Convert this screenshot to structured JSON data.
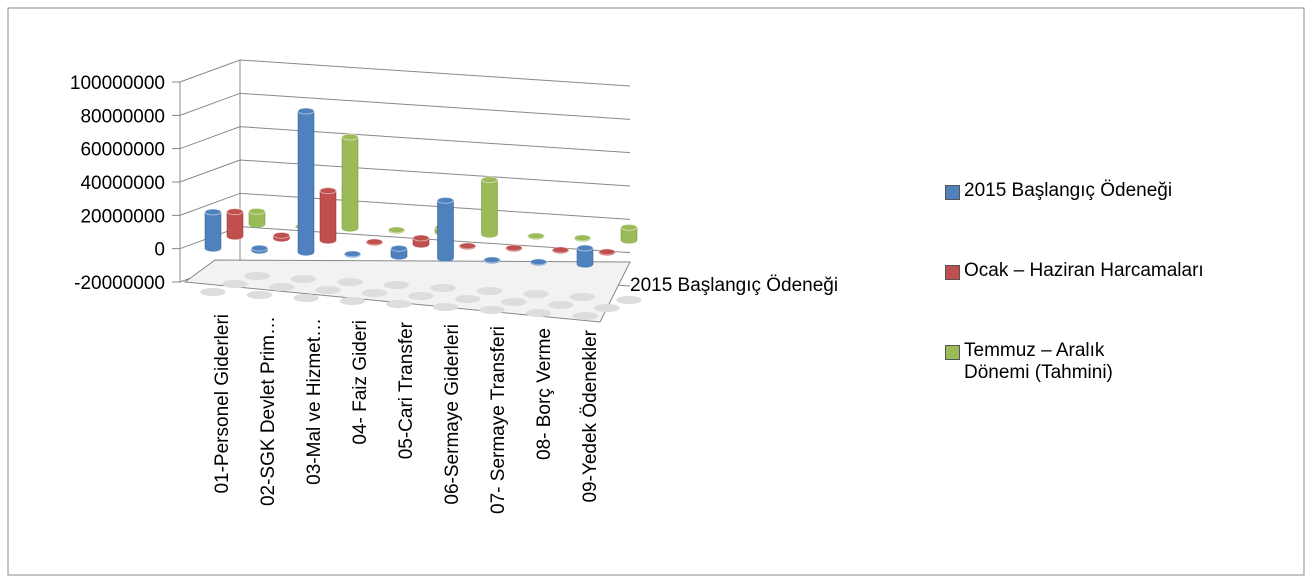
{
  "chart_data": {
    "type": "bar3d",
    "categories": [
      "01-Personel Giderleri",
      "02-SGK Devlet Prim…",
      "03-Mal ve Hizmet…",
      "04- Faiz Gideri",
      "05-Cari Transfer",
      "06-Sermaye Giderleri",
      "07- Sermaye Transferi",
      "08- Borç Verme",
      "09-Yedek Ödenekler"
    ],
    "series": [
      {
        "name": "2015 Başlangıç Ödeneği",
        "color": "#4f81bd",
        "values": [
          22000000,
          1500000,
          85000000,
          500000,
          5000000,
          35000000,
          500000,
          500000,
          10000000
        ]
      },
      {
        "name": "Ocak – Haziran  Harcamaları",
        "color": "#c0504d",
        "values": [
          15000000,
          2000000,
          30000000,
          500000,
          4000000,
          500000,
          500000,
          500000,
          500000
        ]
      },
      {
        "name": "Temmuz – Aralık Dönemi (Tahmini)",
        "color": "#9bbb59",
        "values": [
          8000000,
          0,
          55000000,
          500000,
          3000000,
          33000000,
          500000,
          500000,
          8000000
        ]
      }
    ],
    "depth_label": "2015 Başlangıç Ödeneği",
    "ylim": [
      -20000000,
      100000000
    ],
    "yticks": [
      -20000000,
      0,
      20000000,
      40000000,
      60000000,
      80000000,
      100000000
    ],
    "grid": true
  }
}
